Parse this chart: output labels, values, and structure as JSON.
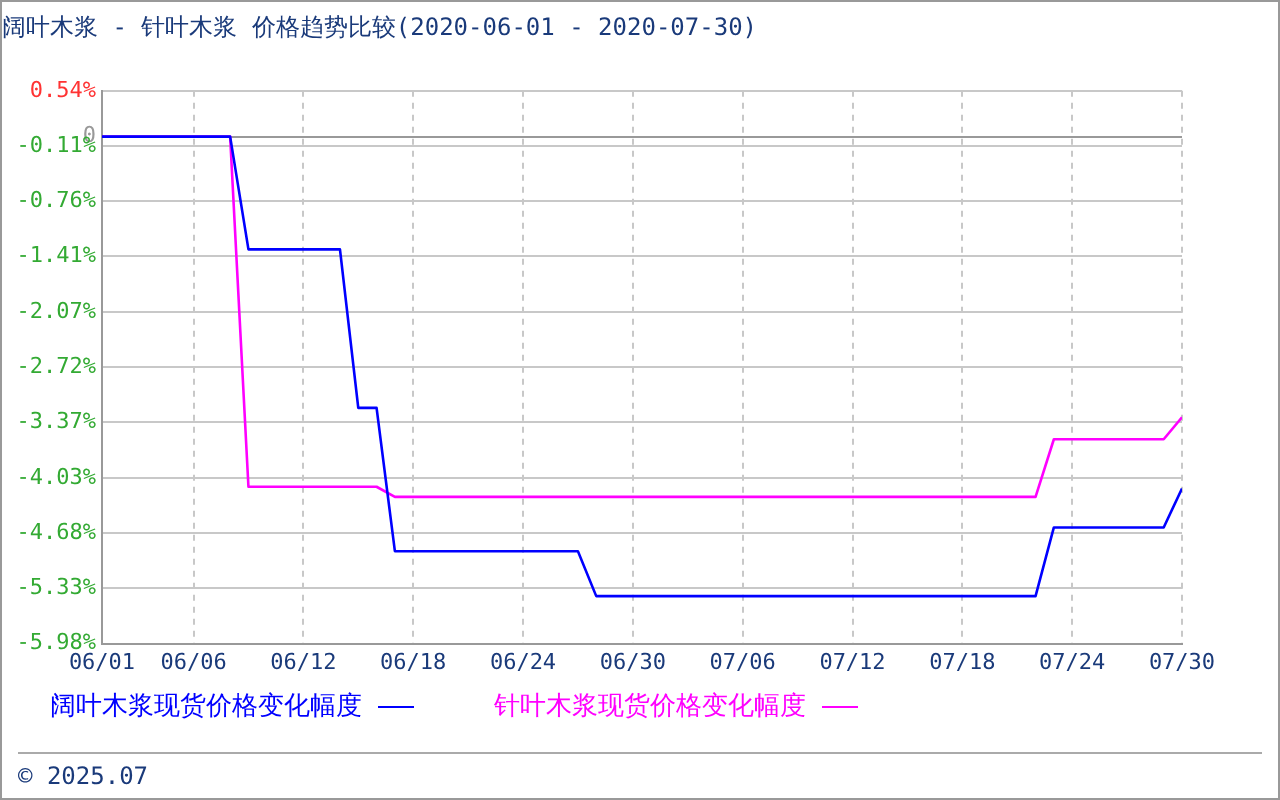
{
  "chart_data": {
    "type": "line",
    "title": "阔叶木浆 - 针叶木浆 价格趋势比较(2020-06-01 - 2020-07-30)",
    "series": [
      {
        "name": "阔叶木浆现货价格变化幅度",
        "color": "#0000ff",
        "x": [
          "2020-06-01",
          "2020-06-08",
          "2020-06-09",
          "2020-06-14",
          "2020-06-15",
          "2020-06-16",
          "2020-06-17",
          "2020-06-27",
          "2020-06-28",
          "2020-07-22",
          "2020-07-23",
          "2020-07-29",
          "2020-07-30"
        ],
        "values": [
          0,
          0,
          -1.33,
          -1.33,
          -3.2,
          -3.2,
          -4.89,
          -4.89,
          -5.42,
          -5.42,
          -4.61,
          -4.61,
          -4.15
        ]
      },
      {
        "name": "针叶木浆现货价格变化幅度",
        "color": "#ff00ff",
        "x": [
          "2020-06-01",
          "2020-06-08",
          "2020-06-09",
          "2020-06-16",
          "2020-06-17",
          "2020-07-22",
          "2020-07-23",
          "2020-07-29",
          "2020-07-30"
        ],
        "values": [
          0,
          0,
          -4.13,
          -4.13,
          -4.25,
          -4.25,
          -3.57,
          -3.57,
          -3.31
        ]
      }
    ],
    "xlim": [
      "2020-06-01",
      "2020-07-30"
    ],
    "xticks": [
      {
        "value": "2020-06-01",
        "label": "06/01"
      },
      {
        "value": "2020-06-06",
        "label": "06/06"
      },
      {
        "value": "2020-06-12",
        "label": "06/12"
      },
      {
        "value": "2020-06-18",
        "label": "06/18"
      },
      {
        "value": "2020-06-24",
        "label": "06/24"
      },
      {
        "value": "2020-06-30",
        "label": "06/30"
      },
      {
        "value": "2020-07-06",
        "label": "07/06"
      },
      {
        "value": "2020-07-12",
        "label": "07/12"
      },
      {
        "value": "2020-07-18",
        "label": "07/18"
      },
      {
        "value": "2020-07-24",
        "label": "07/24"
      },
      {
        "value": "2020-07-30",
        "label": "07/30"
      }
    ],
    "ylim": [
      -5.98,
      0.54
    ],
    "yticks": [
      {
        "value": 0.54,
        "label": "0.54%"
      },
      {
        "value": 0,
        "label": "0"
      },
      {
        "value": -0.11,
        "label": "-0.11%"
      },
      {
        "value": -0.76,
        "label": "-0.76%"
      },
      {
        "value": -1.41,
        "label": "-1.41%"
      },
      {
        "value": -2.07,
        "label": "-2.07%"
      },
      {
        "value": -2.72,
        "label": "-2.72%"
      },
      {
        "value": -3.37,
        "label": "-3.37%"
      },
      {
        "value": -4.03,
        "label": "-4.03%"
      },
      {
        "value": -4.68,
        "label": "-4.68%"
      },
      {
        "value": -5.33,
        "label": "-5.33%"
      },
      {
        "value": -5.98,
        "label": "-5.98%"
      }
    ],
    "grid": true,
    "legend": "bottom",
    "marker": "none",
    "line_style": "solid",
    "annotations": [
      "© 2025.07"
    ]
  }
}
